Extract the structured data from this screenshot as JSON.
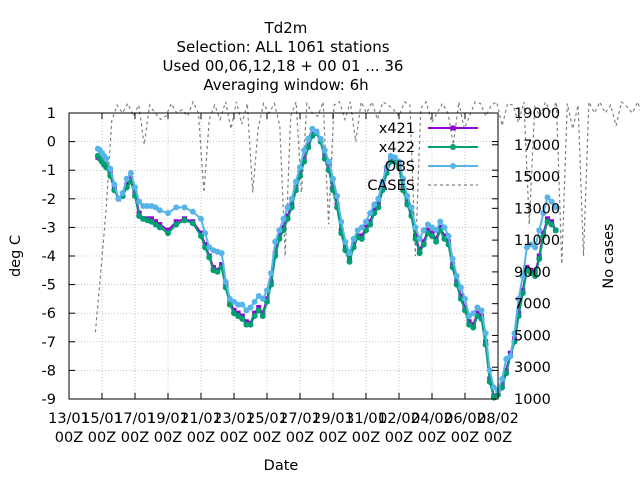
{
  "chart_data": {
    "type": "line",
    "title": [
      "Td2m",
      "Selection: ALL    1061 stations",
      "Used  00,06,12,18 + 00 01 ... 36",
      "Averaging window:  6h"
    ],
    "xlabel": "Date",
    "ylabel": "deg C",
    "y2label": "No cases",
    "ylim": [
      -9,
      1
    ],
    "y2lim": [
      1000,
      19000
    ],
    "yticks": [
      "1",
      "0",
      "-1",
      "-2",
      "-3",
      "-4",
      "-5",
      "-6",
      "-7",
      "-8",
      "-9"
    ],
    "y2ticks": [
      "19000",
      "17000",
      "15000",
      "13000",
      "11000",
      "9000",
      "7000",
      "5000",
      "3000",
      "1000"
    ],
    "xticks": [
      {
        "top": "13/01",
        "bottom": "00Z"
      },
      {
        "top": "15/01",
        "bottom": "00Z"
      },
      {
        "top": "17/01",
        "bottom": "00Z"
      },
      {
        "top": "19/01",
        "bottom": "00Z"
      },
      {
        "top": "21/01",
        "bottom": "00Z"
      },
      {
        "top": "23/01",
        "bottom": "00Z"
      },
      {
        "top": "25/01",
        "bottom": "00Z"
      },
      {
        "top": "27/01",
        "bottom": "00Z"
      },
      {
        "top": "29/01",
        "bottom": "00Z"
      },
      {
        "top": "31/01",
        "bottom": "00Z"
      },
      {
        "top": "02/02",
        "bottom": "00Z"
      },
      {
        "top": "04/02",
        "bottom": "00Z"
      },
      {
        "top": "06/02",
        "bottom": "00Z"
      },
      {
        "top": "08/02",
        "bottom": "00Z"
      }
    ],
    "x_start": "13/01 00Z",
    "x_step_hours": 6,
    "grid": true,
    "legend_position": "top-right",
    "obs_days": [
      1.75,
      1.875,
      2.0,
      2.125,
      2.25,
      2.5,
      2.75,
      3.0,
      3.25,
      3.5,
      3.75,
      4.0,
      4.25,
      4.5,
      4.75,
      5.0,
      5.25,
      5.5,
      6.0,
      6.5,
      7.0,
      7.5,
      8.0,
      8.25,
      8.5,
      8.75,
      9.0,
      9.25,
      9.5,
      9.75,
      10.0,
      10.25,
      10.5,
      10.75,
      11.0,
      11.25,
      11.5,
      11.75,
      12.0,
      12.25,
      12.5,
      12.75,
      13.0,
      13.25,
      13.5,
      13.75,
      14.0,
      14.25,
      14.5,
      14.75,
      15.0,
      15.25,
      15.5,
      15.75,
      16.0,
      16.25,
      16.5,
      16.75,
      17.0,
      17.25,
      17.5,
      17.75,
      18.0,
      18.25,
      18.5,
      18.75,
      19.0,
      19.25,
      19.5,
      19.75,
      20.0,
      20.25,
      20.5,
      20.75,
      21.0,
      21.25,
      21.5,
      21.75,
      22.0,
      22.25,
      22.5,
      22.75,
      23.0,
      23.25,
      23.5,
      23.75,
      24.0,
      24.25,
      24.5,
      24.75,
      25.0,
      25.25,
      25.5,
      25.75,
      26.0,
      26.25,
      26.5,
      26.75,
      27.0,
      27.25,
      27.5,
      27.75,
      28.0,
      28.25,
      28.5,
      28.75,
      29.0,
      29.25,
      29.5,
      29.75,
      30.0,
      30.25,
      30.5,
      30.75,
      31.0,
      31.25,
      31.5,
      31.75,
      32.0,
      32.25,
      32.5,
      32.75,
      33.0,
      33.25,
      33.5,
      33.75,
      34.0,
      34.25,
      34.5,
      34.75,
      35.0,
      35.25,
      35.5,
      35.75,
      36.0,
      36.25,
      36.5,
      36.75,
      37.0
    ],
    "series": [
      {
        "name": "x421",
        "color": "#9400d3",
        "marker": "square",
        "values": [
          -0.55,
          -0.6,
          -0.7,
          -0.8,
          -0.85,
          -1.1,
          -1.6,
          -2.0,
          -1.9,
          -1.5,
          -1.3,
          -1.8,
          -2.5,
          -2.7,
          -2.7,
          -2.7,
          -2.8,
          -2.9,
          -3.1,
          -2.8,
          -2.7,
          -2.8,
          -3.2,
          -3.6,
          -4.0,
          -4.4,
          -4.5,
          -4.3,
          -5.0,
          -5.6,
          -5.9,
          -6.0,
          -6.1,
          -6.3,
          -6.35,
          -6.0,
          -5.8,
          -6.0,
          -5.5,
          -4.9,
          -3.9,
          -3.3,
          -3.0,
          -2.6,
          -2.2,
          -1.6,
          -1.1,
          -0.6,
          -0.15,
          0.25,
          0.35,
          0.05,
          -0.5,
          -0.9,
          -1.6,
          -2.2,
          -3.1,
          -3.7,
          -4.1,
          -3.6,
          -3.3,
          -3.3,
          -3.0,
          -2.8,
          -2.4,
          -2.2,
          -1.6,
          -1.0,
          -0.6,
          -0.6,
          -0.8,
          -1.6,
          -2.1,
          -2.5,
          -3.3,
          -3.8,
          -3.5,
          -3.1,
          -3.2,
          -3.4,
          -3.0,
          -3.3,
          -3.5,
          -4.3,
          -4.9,
          -5.4,
          -5.8,
          -6.3,
          -6.4,
          -6.0,
          -6.1,
          -7.0,
          -8.3,
          -8.9,
          -8.8,
          -8.5,
          -8.0,
          -7.4,
          -6.9,
          -6.0,
          -5.2,
          -4.4,
          -4.5,
          -4.6,
          -4.0,
          -3.2,
          -2.7,
          -2.8,
          -3.1
        ]
      },
      {
        "name": "x422",
        "color": "#009e73",
        "marker": "circle",
        "values": [
          -0.5,
          -0.6,
          -0.7,
          -0.8,
          -0.9,
          -1.2,
          -1.7,
          -2.0,
          -1.9,
          -1.6,
          -1.4,
          -1.9,
          -2.6,
          -2.7,
          -2.75,
          -2.8,
          -2.9,
          -3.0,
          -3.2,
          -2.9,
          -2.75,
          -2.85,
          -3.3,
          -3.7,
          -4.05,
          -4.5,
          -4.55,
          -4.4,
          -5.1,
          -5.7,
          -6.0,
          -6.1,
          -6.2,
          -6.4,
          -6.4,
          -6.1,
          -5.9,
          -6.1,
          -5.6,
          -5.0,
          -4.0,
          -3.4,
          -3.1,
          -2.7,
          -2.3,
          -1.7,
          -1.2,
          -0.7,
          -0.2,
          0.2,
          0.3,
          0.0,
          -0.6,
          -1.0,
          -1.7,
          -2.3,
          -3.2,
          -3.8,
          -4.2,
          -3.7,
          -3.35,
          -3.4,
          -3.1,
          -2.9,
          -2.5,
          -2.3,
          -1.7,
          -1.1,
          -0.7,
          -0.7,
          -0.9,
          -1.7,
          -2.2,
          -2.6,
          -3.4,
          -3.9,
          -3.6,
          -3.2,
          -3.3,
          -3.5,
          -3.1,
          -3.4,
          -3.6,
          -4.4,
          -5.0,
          -5.5,
          -5.9,
          -6.4,
          -6.5,
          -6.1,
          -6.2,
          -7.1,
          -8.4,
          -8.95,
          -8.85,
          -8.6,
          -8.1,
          -7.5,
          -7.0,
          -6.1,
          -5.3,
          -4.5,
          -4.6,
          -4.7,
          -4.1,
          -3.3,
          -2.8,
          -2.9,
          -3.1
        ]
      },
      {
        "name": "OBS",
        "color": "#56b4e9",
        "marker": "circle",
        "values": [
          -0.25,
          -0.3,
          -0.4,
          -0.5,
          -0.6,
          -0.95,
          -1.5,
          -2.0,
          -1.8,
          -1.3,
          -1.1,
          -1.6,
          -2.1,
          -2.25,
          -2.25,
          -2.25,
          -2.3,
          -2.4,
          -2.5,
          -2.3,
          -2.3,
          -2.45,
          -2.7,
          -3.2,
          -3.7,
          -3.8,
          -3.85,
          -3.9,
          -4.9,
          -5.5,
          -5.6,
          -5.7,
          -5.7,
          -5.9,
          -5.8,
          -5.6,
          -5.4,
          -5.5,
          -5.2,
          -4.6,
          -3.5,
          -3.1,
          -2.7,
          -2.3,
          -2.0,
          -1.4,
          -0.9,
          -0.3,
          0.1,
          0.45,
          0.35,
          0.1,
          -0.3,
          -0.7,
          -1.3,
          -1.9,
          -2.8,
          -3.5,
          -3.9,
          -3.4,
          -3.1,
          -3.0,
          -2.8,
          -2.5,
          -2.2,
          -2.0,
          -1.4,
          -0.9,
          -0.5,
          -0.55,
          -0.7,
          -1.3,
          -1.9,
          -2.3,
          -3.0,
          -3.4,
          -3.1,
          -2.9,
          -3.0,
          -3.1,
          -2.8,
          -3.0,
          -3.3,
          -4.1,
          -4.7,
          -5.1,
          -5.5,
          -6.1,
          -6.0,
          -5.8,
          -5.9,
          -6.7,
          -8.0,
          -8.6,
          -8.7,
          -8.3,
          -7.6,
          -7.5,
          -6.7,
          -5.5,
          -4.7,
          -3.7,
          -3.6,
          -3.7,
          -3.1,
          -2.5,
          -1.95,
          -2.1,
          -2.3
        ]
      }
    ],
    "cases": {
      "name": "CASES",
      "color": "#808080",
      "style": "dashed",
      "values": [
        5200,
        9000,
        13000,
        18500,
        19500,
        19000,
        19600,
        18800,
        19500,
        17000,
        19500,
        19000,
        18600,
        18800,
        19600,
        19000,
        19200,
        18800,
        19700,
        19000,
        14000,
        18600,
        19500,
        18600,
        19700,
        18000,
        19700,
        18300,
        19600,
        14000,
        18000,
        19600,
        19000,
        19600,
        18200,
        10000,
        18800,
        19700,
        14000,
        19600,
        19000,
        18800,
        19700,
        12000,
        19500,
        19700,
        18600,
        19700,
        17200,
        19700,
        19000,
        19700,
        18600,
        19700,
        19500,
        19200,
        18800,
        19700,
        19500,
        10000,
        19300,
        19700,
        18400,
        19000,
        19600,
        19000,
        17000,
        19700,
        18000,
        18800,
        19700,
        19600,
        18800,
        19500,
        19700,
        18200,
        19600,
        19500,
        18400,
        19700,
        12000,
        19400,
        18800,
        19700,
        19000,
        19700,
        9500,
        19600,
        18000,
        19500,
        10000,
        19700,
        19000,
        19700,
        19000,
        19500,
        18200,
        19700,
        19400,
        19000,
        19700,
        18600,
        19500,
        19000,
        19700,
        18800,
        19500,
        19700,
        9000
      ]
    },
    "legend": [
      {
        "label": "x421",
        "color": "#9400d3",
        "style": "solid",
        "marker": "square"
      },
      {
        "label": "x422",
        "color": "#009e73",
        "style": "solid",
        "marker": "circle"
      },
      {
        "label": "OBS",
        "color": "#56b4e9",
        "style": "solid",
        "marker": "circle"
      },
      {
        "label": "CASES",
        "color": "#808080",
        "style": "dashed",
        "marker": "none"
      }
    ]
  }
}
